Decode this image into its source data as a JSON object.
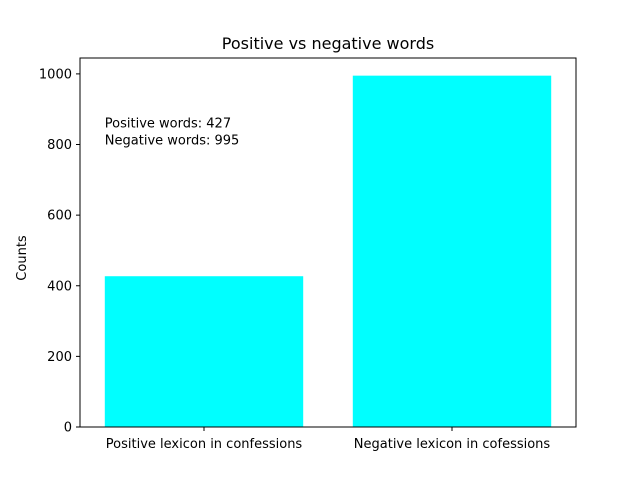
{
  "chart_data": {
    "type": "bar",
    "title": "Positive vs negative words",
    "xlabel": "",
    "ylabel": "Counts",
    "categories": [
      "Positive lexicon in confessions",
      "Negative lexicon in cofessions"
    ],
    "values": [
      427,
      995
    ],
    "ylim": [
      0,
      1045
    ],
    "yticks": [
      0,
      200,
      400,
      600,
      800,
      1000
    ],
    "bar_color": "#00ffff",
    "grid": false,
    "annotation": {
      "lines": [
        "Positive words: 427",
        "Negative words: 995"
      ],
      "x": -0.4,
      "y": 800
    }
  }
}
